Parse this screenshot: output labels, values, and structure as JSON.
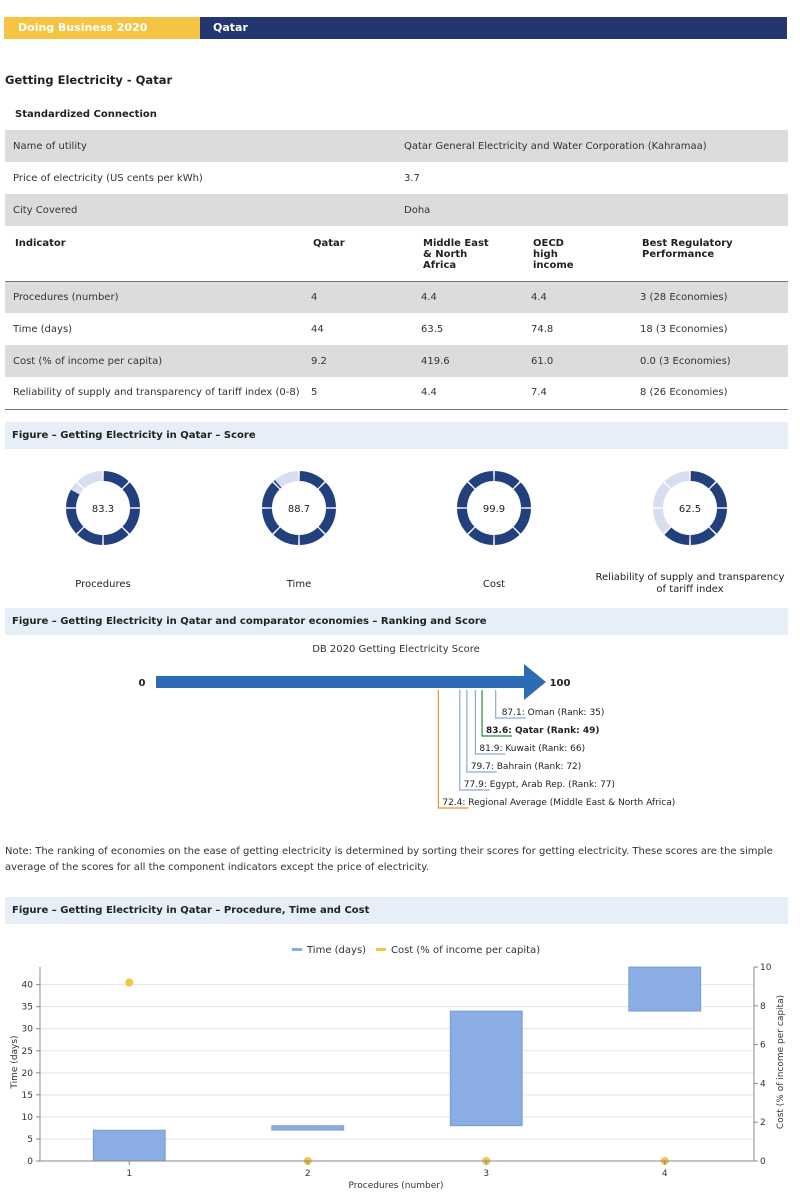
{
  "banner": {
    "left": "Doing Business  2020",
    "right": "Qatar"
  },
  "page_title": "Getting Electricity - Qatar",
  "standardized": {
    "header": "Standardized Connection",
    "rows": [
      {
        "label": "Name of utility",
        "value": "Qatar General Electricity and Water Corporation (Kahramaa)"
      },
      {
        "label": "Price of electricity (US cents per kWh)",
        "value": "3.7"
      },
      {
        "label": "City Covered",
        "value": "Doha"
      }
    ]
  },
  "indicators": {
    "headers": [
      "Indicator",
      "Qatar",
      "Middle East & North Africa",
      "OECD high income",
      "Best Regulatory Performance"
    ],
    "rows": [
      [
        "Procedures (number)",
        "4",
        "4.4",
        "4.4",
        "3 (28 Economies)"
      ],
      [
        "Time (days)",
        "44",
        "63.5",
        "74.8",
        "18 (3 Economies)"
      ],
      [
        "Cost (% of income per capita)",
        "9.2",
        "419.6",
        "61.0",
        "0.0 (3 Economies)"
      ],
      [
        "Reliability of supply and transparency of tariff index (0-8)",
        "5",
        "4.4",
        "7.4",
        "8 (26 Economies)"
      ]
    ]
  },
  "figure_score": {
    "title": "Figure – Getting Electricity in Qatar – Score",
    "donuts": [
      {
        "label": "Procedures",
        "value": "83.3",
        "score": 83.3
      },
      {
        "label": "Time",
        "value": "88.7",
        "score": 88.7
      },
      {
        "label": "Cost",
        "value": "99.9",
        "score": 99.9
      },
      {
        "label": "Reliability of supply and transparency of tariff index",
        "value": "62.5",
        "score": 62.5
      }
    ],
    "colors": {
      "filled": "#23407e",
      "empty": "#d7def0"
    }
  },
  "figure_ranking": {
    "title": "Figure – Getting Electricity in Qatar and comparator economies – Ranking and Score",
    "chart_title": "DB 2020 Getting Electricity Score",
    "axis_min": "0",
    "axis_max": "100",
    "entries": [
      {
        "text": "87.1: Oman (Rank: 35)",
        "score": 87.1,
        "color": "#8fa8d8",
        "bold": false
      },
      {
        "text": "83.6: Qatar (Rank: 49)",
        "score": 83.6,
        "color": "#2e8b3a",
        "bold": true
      },
      {
        "text": "81.9: Kuwait (Rank: 66)",
        "score": 81.9,
        "color": "#8fa8d8",
        "bold": false
      },
      {
        "text": "79.7: Bahrain (Rank: 72)",
        "score": 79.7,
        "color": "#8fa8d8",
        "bold": false
      },
      {
        "text": "77.9: Egypt, Arab Rep. (Rank: 77)",
        "score": 77.9,
        "color": "#8fa8d8",
        "bold": false
      },
      {
        "text": "72.4: Regional Average (Middle East & North Africa)",
        "score": 72.4,
        "color": "#e8952e",
        "bold": false
      }
    ],
    "arrow_color": "#2c6cb5"
  },
  "note": "Note: The ranking of economies on the ease of getting electricity is determined by sorting their scores for getting electricity. These scores are the simple average of the scores for all the component indicators except the price of electricity.",
  "figure_ptc": {
    "title": "Figure – Getting Electricity in Qatar – Procedure, Time and Cost"
  },
  "chart_data": {
    "type": "bar",
    "legend": [
      "Time (days)",
      "Cost (% of income per capita)"
    ],
    "xlabel": "Procedures (number)",
    "ylabel": "Time (days)",
    "y2label": "Cost (% of income per capita)",
    "categories": [
      "1",
      "2",
      "3",
      "4"
    ],
    "ylim": [
      0,
      44
    ],
    "y2lim": [
      0,
      10
    ],
    "yticks": [
      "0",
      "5",
      "10",
      "15",
      "20",
      "25",
      "30",
      "35",
      "40"
    ],
    "y2ticks": [
      "0",
      "2",
      "4",
      "6",
      "8",
      "10"
    ],
    "time_bars": [
      {
        "start": 0,
        "end": 7
      },
      {
        "start": 7,
        "end": 8
      },
      {
        "start": 8,
        "end": 34
      },
      {
        "start": 34,
        "end": 44
      }
    ],
    "cost_points": [
      9.2,
      0,
      0,
      0
    ],
    "colors": {
      "time": "#8aaee3",
      "cost": "#f5c443"
    }
  }
}
